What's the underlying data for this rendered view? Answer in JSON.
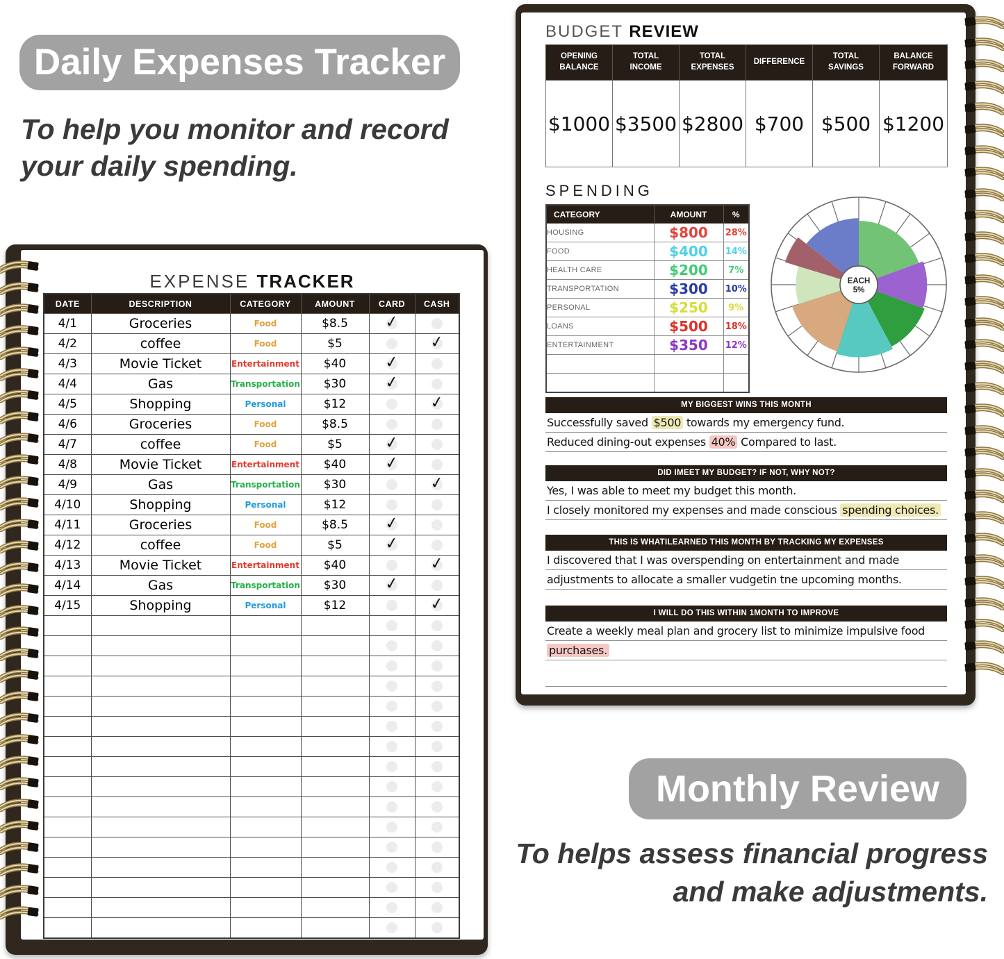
{
  "colors": {
    "pill_bg": "#a2a2a2",
    "header_bar_bg": "#261d17",
    "cover": "#30271f",
    "highlight_yellow": "#efe9b4",
    "highlight_pink": "#f6c8c3"
  },
  "left_panel": {
    "heading": "Daily Expenses Tracker",
    "tagline": [
      "To help you monitor and record",
      "your daily spending."
    ],
    "page_title": {
      "light": "EXPENSE ",
      "bold": "TRACKER"
    },
    "expense_table": {
      "columns": [
        "DATE",
        "DESCRIPTION",
        "CATEGORY",
        "AMOUNT",
        "CARD",
        "CASH"
      ],
      "check_glyph": "✓",
      "category_colors": {
        "Food": "#e2a13c",
        "Entertainment": "#e6392e",
        "Transportation": "#27b04b",
        "Personal": "#1e9be4"
      },
      "rows": [
        {
          "date": "4/1",
          "description": "Groceries",
          "category": "Food",
          "amount": "$8.5",
          "card": true,
          "cash": false
        },
        {
          "date": "4/2",
          "description": "coffee",
          "category": "Food",
          "amount": "$5",
          "card": false,
          "cash": true
        },
        {
          "date": "4/3",
          "description": "Movie Ticket",
          "category": "Entertainment",
          "amount": "$40",
          "card": true,
          "cash": false
        },
        {
          "date": "4/4",
          "description": "Gas",
          "category": "Transportation",
          "amount": "$30",
          "card": true,
          "cash": false
        },
        {
          "date": "4/5",
          "description": "Shopping",
          "category": "Personal",
          "amount": "$12",
          "card": false,
          "cash": true
        },
        {
          "date": "4/6",
          "description": "Groceries",
          "category": "Food",
          "amount": "$8.5",
          "card": false,
          "cash": false
        },
        {
          "date": "4/7",
          "description": "coffee",
          "category": "Food",
          "amount": "$5",
          "card": true,
          "cash": false
        },
        {
          "date": "4/8",
          "description": "Movie Ticket",
          "category": "Entertainment",
          "amount": "$40",
          "card": true,
          "cash": false
        },
        {
          "date": "4/9",
          "description": "Gas",
          "category": "Transportation",
          "amount": "$30",
          "card": false,
          "cash": true
        },
        {
          "date": "4/10",
          "description": "Shopping",
          "category": "Personal",
          "amount": "$12",
          "card": false,
          "cash": false
        },
        {
          "date": "4/11",
          "description": "Groceries",
          "category": "Food",
          "amount": "$8.5",
          "card": true,
          "cash": false
        },
        {
          "date": "4/12",
          "description": "coffee",
          "category": "Food",
          "amount": "$5",
          "card": true,
          "cash": false
        },
        {
          "date": "4/13",
          "description": "Movie Ticket",
          "category": "Entertainment",
          "amount": "$40",
          "card": false,
          "cash": true
        },
        {
          "date": "4/14",
          "description": "Gas",
          "category": "Transportation",
          "amount": "$30",
          "card": true,
          "cash": false
        },
        {
          "date": "4/15",
          "description": "Shopping",
          "category": "Personal",
          "amount": "$12",
          "card": false,
          "cash": true
        }
      ],
      "empty_rows": 16
    }
  },
  "right_panel": {
    "budget_review": {
      "title": {
        "light": "BUDGET ",
        "bold": "REVIEW"
      },
      "columns": [
        "OPENING BALANCE",
        "TOTAL INCOME",
        "TOTAL EXPENSES",
        "DIFFERENCE",
        "TOTAL SAVINGS",
        "BALANCE FORWARD"
      ],
      "values": [
        "$1000",
        "$3500",
        "$2800",
        "$700",
        "$500",
        "$1200"
      ]
    },
    "spending": {
      "title": "SPENDING",
      "columns": [
        "CATEGORY",
        "AMOUNT",
        "%"
      ],
      "rows": [
        {
          "category": "HOUSING",
          "amount": "$800",
          "percent": "28%",
          "color": "#e0443c"
        },
        {
          "category": "FOOD",
          "amount": "$400",
          "percent": "14%",
          "color": "#4ed2e6"
        },
        {
          "category": "HEALTH CARE",
          "amount": "$200",
          "percent": "7%",
          "color": "#3fcc74"
        },
        {
          "category": "TRANSPORTATION",
          "amount": "$300",
          "percent": "10%",
          "color": "#2a3aa8"
        },
        {
          "category": "PERSONAL",
          "amount": "$250",
          "percent": "9%",
          "color": "#d5de39"
        },
        {
          "category": "LOANS",
          "amount": "$500",
          "percent": "18%",
          "color": "#df3127"
        },
        {
          "category": "ENTERTAINMENT",
          "amount": "$350",
          "percent": "12%",
          "color": "#8f35c5"
        }
      ],
      "empty_rows": 2
    },
    "pie_chart": {
      "type": "pie",
      "center_label": [
        "EACH",
        "5%"
      ],
      "segments": 20,
      "slices": [
        {
          "label": "green",
          "color": "#73c377",
          "start": 0,
          "end": 70,
          "r": 0.73
        },
        {
          "label": "purple",
          "color": "#9c62cf",
          "start": 70,
          "end": 110,
          "r": 0.78
        },
        {
          "label": "dark-green",
          "color": "#2f9e3f",
          "start": 110,
          "end": 152,
          "r": 0.8
        },
        {
          "label": "teal",
          "color": "#58c9c1",
          "start": 152,
          "end": 198,
          "r": 0.83
        },
        {
          "label": "tan",
          "color": "#d8a87e",
          "start": 198,
          "end": 252,
          "r": 0.8
        },
        {
          "label": "pale-green",
          "color": "#cfe5bc",
          "start": 252,
          "end": 287,
          "r": 0.72
        },
        {
          "label": "maroon",
          "color": "#a2616a",
          "start": 287,
          "end": 308,
          "r": 0.88
        },
        {
          "label": "blue",
          "color": "#6b7dc8",
          "start": 308,
          "end": 360,
          "r": 0.76
        }
      ]
    },
    "sections": [
      {
        "header": "MY BIGGEST WINS THIS MONTH",
        "lines": [
          [
            {
              "text": "Successfully saved "
            },
            {
              "text": "$500",
              "highlight": "yellow"
            },
            {
              "text": " towards my emergency fund."
            }
          ],
          [
            {
              "text": "Reduced dining-out expenses "
            },
            {
              "text": "40%",
              "highlight": "pink"
            },
            {
              "text": " Compared to last."
            }
          ]
        ]
      },
      {
        "header": "DID IMEET MY BUDGET? IF NOT, WHY NOT?",
        "lines": [
          [
            {
              "text": "Yes, I was able to meet my budget this month."
            }
          ],
          [
            {
              "text": "I closely monitored my expenses and made conscious "
            },
            {
              "text": "spending choices.",
              "highlight": "yellow"
            }
          ]
        ]
      },
      {
        "header": "THIS IS WHATILEARNED THIS MONTH BY TRACKING MY EXPENSES",
        "lines": [
          [
            {
              "text": "I discovered that I was overspending on entertainment and made"
            }
          ],
          [
            {
              "text": "adjustments to allocate a smaller vudgetin tne upcoming months."
            }
          ]
        ]
      },
      {
        "header": "I WILL DO THIS WITHIN 1MONTH TO IMPROVE",
        "lines": [
          [
            {
              "text": "Create a weekly meal plan and grocery list to minimize impulsive food"
            }
          ],
          [
            {
              "text": "purchases.",
              "highlight": "pink"
            }
          ],
          []
        ]
      }
    ],
    "monthly_review": {
      "heading": "Monthly Review",
      "tagline": [
        "To helps assess financial progress",
        "and make adjustments."
      ]
    }
  }
}
